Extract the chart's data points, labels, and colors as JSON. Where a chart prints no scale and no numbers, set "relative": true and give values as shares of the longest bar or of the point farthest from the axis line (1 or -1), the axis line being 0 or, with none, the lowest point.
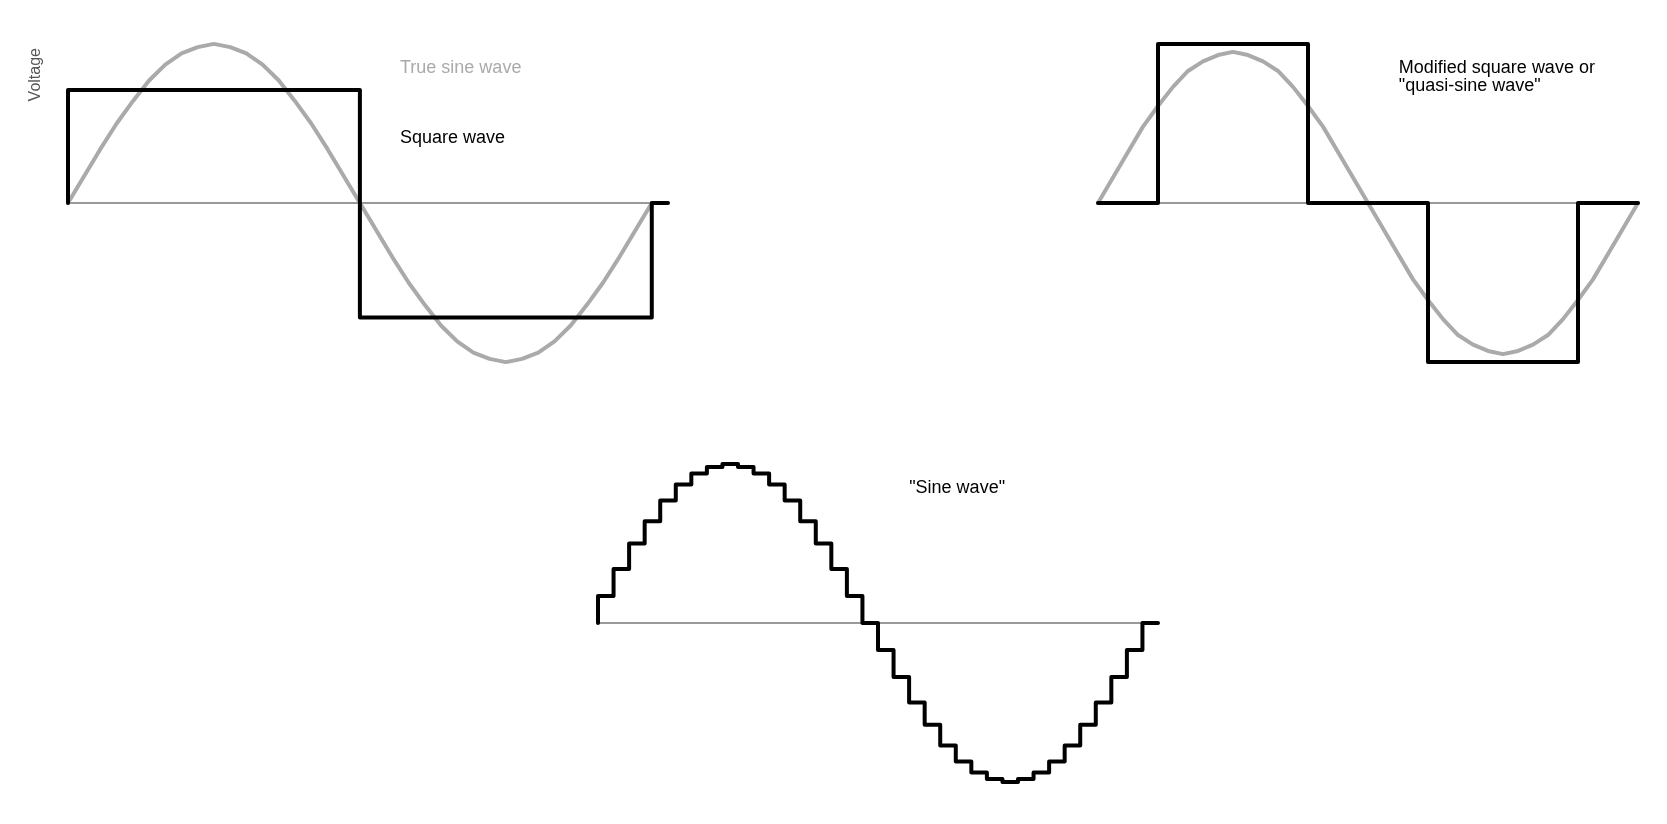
{
  "chart_data": [
    {
      "type": "line",
      "relative": true,
      "ylabel": "Voltage",
      "legend": false,
      "categories": [
        null,
        null,
        null,
        null,
        null,
        null,
        null,
        null,
        null,
        null,
        null,
        null,
        null,
        null,
        null,
        null,
        null,
        null,
        null,
        null,
        null,
        null,
        null,
        null,
        null,
        null,
        null,
        null,
        null,
        null,
        null,
        null,
        null,
        null,
        null,
        null,
        null,
        null
      ],
      "series": [
        {
          "name": "True sine wave",
          "color": "#aaaaaa",
          "values": [
            0,
            0.17,
            0.34,
            0.5,
            0.64,
            0.77,
            0.87,
            0.94,
            0.98,
            1,
            0.98,
            0.94,
            0.87,
            0.77,
            0.64,
            0.5,
            0.34,
            0.17,
            0,
            -0.17,
            -0.34,
            -0.5,
            -0.64,
            -0.77,
            -0.87,
            -0.94,
            -0.98,
            -1,
            -0.98,
            -0.94,
            -0.87,
            -0.77,
            -0.64,
            -0.5,
            -0.34,
            -0.17,
            0,
            null
          ]
        },
        {
          "name": "Square wave",
          "type": "step",
          "color": "#000000",
          "values": [
            0,
            0.71,
            0.71,
            0.71,
            0.71,
            0.71,
            0.71,
            0.71,
            0.71,
            0.71,
            0.71,
            0.71,
            0.71,
            0.71,
            0.71,
            0.71,
            0.71,
            0.71,
            0.71,
            -0.72,
            -0.72,
            -0.72,
            -0.72,
            -0.72,
            -0.72,
            -0.72,
            -0.72,
            -0.72,
            -0.72,
            -0.72,
            -0.72,
            -0.72,
            -0.72,
            -0.72,
            -0.72,
            -0.72,
            -0.72,
            0
          ]
        }
      ]
    },
    {
      "type": "line",
      "relative": true,
      "legend": false,
      "categories": [
        null,
        null,
        null,
        null,
        null,
        null,
        null,
        null,
        null,
        null,
        null,
        null,
        null,
        null,
        null,
        null,
        null,
        null,
        null,
        null,
        null,
        null,
        null,
        null,
        null,
        null,
        null,
        null,
        null,
        null,
        null,
        null,
        null,
        null,
        null,
        null,
        null
      ],
      "series": [
        {
          "color": "#aaaaaa",
          "values": [
            0,
            0.16,
            0.32,
            0.48,
            0.61,
            0.73,
            0.83,
            0.89,
            0.93,
            0.95,
            0.93,
            0.89,
            0.83,
            0.73,
            0.61,
            0.48,
            0.32,
            0.16,
            0,
            -0.16,
            -0.32,
            -0.48,
            -0.61,
            -0.73,
            -0.83,
            -0.89,
            -0.93,
            -0.95,
            -0.93,
            -0.89,
            -0.83,
            -0.73,
            -0.61,
            -0.48,
            -0.32,
            -0.16,
            0
          ]
        },
        {
          "name": "Modified square wave or \"quasi-sine wave\"",
          "type": "step",
          "color": "#000000",
          "values": [
            0,
            0,
            0,
            0,
            0,
            1,
            1,
            1,
            1,
            1,
            1,
            1,
            1,
            1,
            1,
            0,
            0,
            0,
            0,
            0,
            0,
            0,
            0,
            -1,
            -1,
            -1,
            -1,
            -1,
            -1,
            -1,
            -1,
            -1,
            -1,
            0,
            0,
            0,
            0
          ]
        }
      ]
    },
    {
      "type": "step",
      "relative": true,
      "legend": false,
      "categories": [
        null,
        null,
        null,
        null,
        null,
        null,
        null,
        null,
        null,
        null,
        null,
        null,
        null,
        null,
        null,
        null,
        null,
        null,
        null,
        null,
        null,
        null,
        null,
        null,
        null,
        null,
        null,
        null,
        null,
        null,
        null,
        null,
        null,
        null,
        null,
        null,
        null
      ],
      "series": [
        {
          "name": "\"Sine wave\"",
          "color": "#000000",
          "values": [
            0,
            0.17,
            0.34,
            0.5,
            0.64,
            0.77,
            0.87,
            0.94,
            0.98,
            1,
            0.98,
            0.94,
            0.87,
            0.77,
            0.64,
            0.5,
            0.34,
            0.17,
            0,
            -0.17,
            -0.34,
            -0.5,
            -0.64,
            -0.77,
            -0.87,
            -0.94,
            -0.98,
            -1,
            -0.98,
            -0.94,
            -0.87,
            -0.77,
            -0.64,
            -0.5,
            -0.34,
            -0.17,
            0
          ]
        }
      ]
    }
  ]
}
